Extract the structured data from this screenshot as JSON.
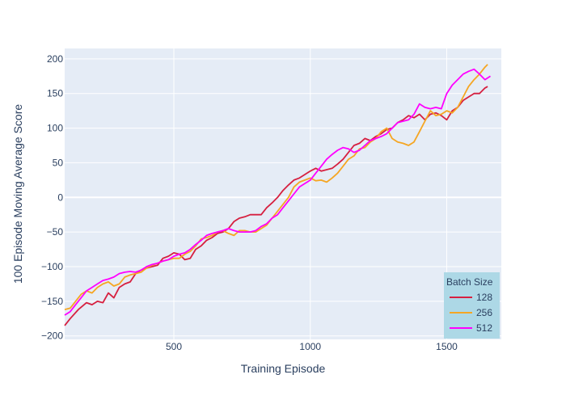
{
  "chart_data": {
    "type": "line",
    "title": "",
    "xlabel": "Training Episode",
    "ylabel": "100 Episode Moving Average Score",
    "xlim": [
      100,
      1700
    ],
    "ylim": [
      -205,
      215
    ],
    "xticks": [
      500,
      1000,
      1500
    ],
    "yticks": [
      -200,
      -150,
      -100,
      -50,
      0,
      50,
      100,
      150,
      200
    ],
    "grid": true,
    "legend": {
      "title": "Batch Size",
      "position": "bottom-right"
    },
    "colors": {
      "plot_bg": "#e5ecf6",
      "grid": "#ffffff",
      "text": "#2a3f5f",
      "legend_bg": "#add8e6"
    },
    "series": [
      {
        "name": "128",
        "color": "#d62040",
        "x": [
          100,
          120,
          150,
          180,
          200,
          220,
          240,
          260,
          280,
          300,
          320,
          340,
          360,
          380,
          400,
          420,
          440,
          460,
          480,
          500,
          520,
          540,
          560,
          580,
          600,
          620,
          640,
          660,
          680,
          700,
          720,
          740,
          760,
          780,
          800,
          820,
          840,
          860,
          880,
          900,
          920,
          940,
          960,
          980,
          1000,
          1020,
          1040,
          1060,
          1080,
          1100,
          1120,
          1140,
          1160,
          1180,
          1200,
          1220,
          1240,
          1260,
          1280,
          1300,
          1320,
          1340,
          1360,
          1380,
          1400,
          1420,
          1440,
          1460,
          1480,
          1500,
          1520,
          1540,
          1560,
          1580,
          1600,
          1620,
          1640,
          1650
        ],
        "y": [
          -185,
          -175,
          -162,
          -152,
          -155,
          -150,
          -152,
          -138,
          -145,
          -130,
          -125,
          -122,
          -110,
          -105,
          -102,
          -100,
          -98,
          -88,
          -85,
          -80,
          -82,
          -90,
          -88,
          -75,
          -70,
          -62,
          -58,
          -52,
          -50,
          -45,
          -35,
          -30,
          -28,
          -25,
          -25,
          -25,
          -15,
          -8,
          0,
          10,
          18,
          25,
          28,
          33,
          38,
          42,
          38,
          40,
          42,
          48,
          55,
          65,
          75,
          78,
          85,
          82,
          88,
          92,
          98,
          100,
          108,
          112,
          118,
          115,
          120,
          112,
          120,
          122,
          118,
          112,
          125,
          130,
          140,
          145,
          150,
          150,
          158,
          160
        ]
      },
      {
        "name": "256",
        "color": "#f5a623",
        "x": [
          100,
          120,
          140,
          160,
          180,
          200,
          220,
          240,
          260,
          280,
          300,
          320,
          340,
          360,
          380,
          400,
          420,
          440,
          460,
          480,
          500,
          520,
          540,
          560,
          580,
          600,
          620,
          640,
          660,
          680,
          700,
          720,
          740,
          760,
          780,
          800,
          820,
          840,
          860,
          880,
          900,
          920,
          940,
          960,
          980,
          1000,
          1020,
          1040,
          1060,
          1080,
          1100,
          1120,
          1140,
          1160,
          1180,
          1200,
          1220,
          1240,
          1260,
          1280,
          1300,
          1320,
          1340,
          1360,
          1380,
          1400,
          1420,
          1440,
          1460,
          1480,
          1500,
          1520,
          1540,
          1560,
          1580,
          1600,
          1620,
          1640,
          1650
        ],
        "y": [
          -162,
          -160,
          -150,
          -140,
          -135,
          -138,
          -130,
          -125,
          -122,
          -128,
          -125,
          -115,
          -112,
          -110,
          -108,
          -102,
          -98,
          -95,
          -92,
          -90,
          -88,
          -88,
          -82,
          -78,
          -70,
          -60,
          -58,
          -55,
          -50,
          -48,
          -52,
          -55,
          -48,
          -48,
          -50,
          -50,
          -45,
          -40,
          -30,
          -20,
          -10,
          0,
          15,
          22,
          25,
          28,
          24,
          25,
          22,
          28,
          35,
          45,
          55,
          60,
          70,
          72,
          80,
          85,
          95,
          100,
          85,
          80,
          78,
          75,
          80,
          95,
          110,
          125,
          118,
          120,
          125,
          122,
          130,
          145,
          160,
          170,
          178,
          188,
          192
        ]
      },
      {
        "name": "512",
        "color": "#ff00ff",
        "x": [
          100,
          120,
          140,
          160,
          180,
          200,
          220,
          240,
          260,
          280,
          300,
          320,
          340,
          360,
          380,
          400,
          420,
          440,
          460,
          480,
          500,
          520,
          540,
          560,
          580,
          600,
          620,
          640,
          660,
          680,
          700,
          720,
          740,
          760,
          780,
          800,
          820,
          840,
          860,
          880,
          900,
          920,
          940,
          960,
          980,
          1000,
          1020,
          1040,
          1060,
          1080,
          1100,
          1120,
          1140,
          1160,
          1180,
          1200,
          1220,
          1240,
          1260,
          1280,
          1300,
          1320,
          1340,
          1360,
          1380,
          1400,
          1420,
          1440,
          1460,
          1480,
          1500,
          1520,
          1540,
          1560,
          1580,
          1600,
          1620,
          1640,
          1660
        ],
        "y": [
          -170,
          -165,
          -155,
          -145,
          -135,
          -130,
          -125,
          -120,
          -118,
          -115,
          -110,
          -108,
          -107,
          -108,
          -105,
          -100,
          -97,
          -95,
          -92,
          -90,
          -85,
          -82,
          -80,
          -75,
          -68,
          -62,
          -55,
          -52,
          -50,
          -48,
          -45,
          -48,
          -50,
          -50,
          -50,
          -48,
          -42,
          -38,
          -30,
          -25,
          -15,
          -5,
          5,
          15,
          20,
          25,
          35,
          45,
          55,
          62,
          68,
          72,
          70,
          65,
          68,
          75,
          82,
          85,
          88,
          92,
          100,
          108,
          110,
          112,
          120,
          135,
          130,
          128,
          130,
          128,
          150,
          162,
          170,
          178,
          182,
          185,
          178,
          170,
          175
        ]
      }
    ]
  }
}
